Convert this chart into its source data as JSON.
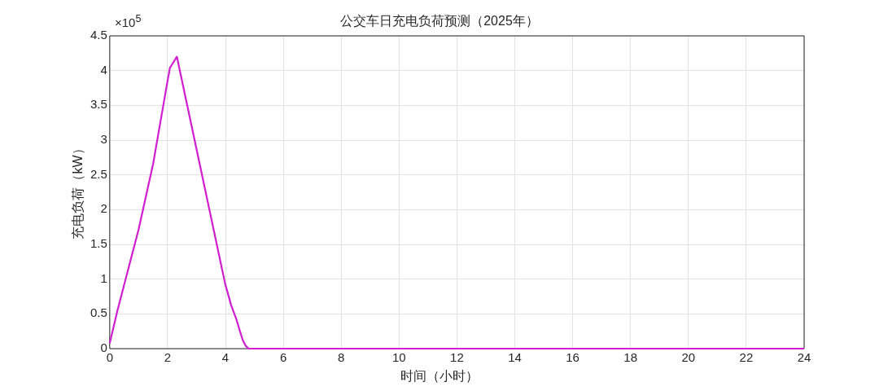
{
  "chart_data": {
    "type": "line",
    "title": "公交车日充电负荷预测（2025年）",
    "xlabel": "时间（小时）",
    "ylabel": "充电负荷（kW）",
    "annotations": [
      "×10$^{5}$"
    ],
    "x": [
      0,
      0.26,
      1,
      1.5,
      1.98,
      2.08,
      2.32,
      3.03,
      3.5,
      3.99,
      4.2,
      4.37,
      4.5,
      4.6,
      4.7,
      4.8,
      6,
      12,
      18,
      24
    ],
    "series": [
      {
        "color": "#d21ed2",
        "values": [
          0.08,
          0.54,
          1.72,
          2.66,
          3.81,
          4.04,
          4.2,
          2.81,
          1.89,
          0.93,
          0.62,
          0.43,
          0.25,
          0.12,
          0.04,
          0,
          0,
          0,
          0,
          0
        ]
      }
    ],
    "xlim": [
      0,
      24
    ],
    "xticks": [
      0,
      2,
      4,
      6,
      8,
      10,
      12,
      14,
      16,
      18,
      20,
      22,
      24
    ],
    "ylim": [
      0,
      4.5
    ],
    "yticks": [
      0,
      0.5,
      1,
      1.5,
      2,
      2.5,
      3,
      3.5,
      4,
      4.5
    ],
    "grid": true,
    "legend": false,
    "marker": "none",
    "line_style": "solid"
  }
}
